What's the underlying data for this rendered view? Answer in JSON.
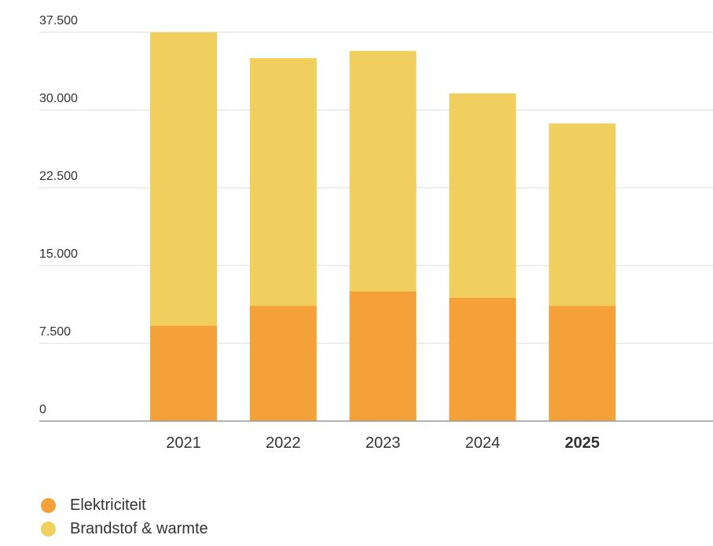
{
  "chart_data": {
    "type": "bar",
    "stacked": true,
    "categories": [
      "2021",
      "2022",
      "2023",
      "2024",
      "2025"
    ],
    "highlight_category": "2025",
    "series": [
      {
        "name": "Elektriciteit",
        "color": "#f5a13a",
        "values": [
          9200,
          11100,
          12500,
          11900,
          11100
        ]
      },
      {
        "name": "Brandstof & warmte",
        "color": "#f0cf5e",
        "values": [
          28300,
          23900,
          23200,
          19700,
          17600
        ]
      }
    ],
    "y_ticks": [
      "0",
      "7.500",
      "15.000",
      "22.500",
      "30.000",
      "37.500"
    ],
    "y_tick_values": [
      0,
      7500,
      15000,
      22500,
      30000,
      37500
    ],
    "ylim": [
      0,
      37500
    ],
    "grid": true,
    "legend_position": "bottom-left"
  }
}
